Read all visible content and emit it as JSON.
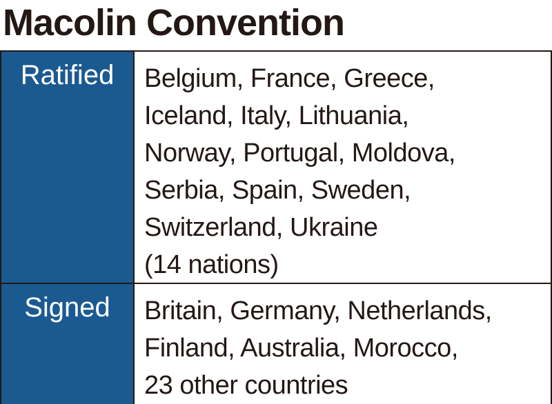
{
  "header": {
    "title": "Macolin Convention"
  },
  "table": {
    "rows": [
      {
        "label": "Ratified",
        "lines": [
          "Belgium, France, Greece,",
          "Iceland, Italy, Lithuania,",
          "Norway, Portugal, Moldova,",
          "Serbia, Spain, Sweden,",
          "Switzerland, Ukraine",
          "(14 nations)"
        ]
      },
      {
        "label": "Signed",
        "lines": [
          "Britain, Germany, Netherlands,",
          "Finland, Australia, Morocco,",
          "23 other countries"
        ]
      }
    ]
  }
}
